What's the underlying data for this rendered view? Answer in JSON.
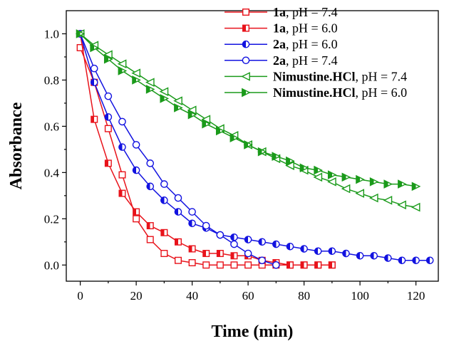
{
  "chart_data": {
    "type": "line",
    "xlabel": "Time (min)",
    "ylabel": "Absorbance",
    "xlim": [
      -5,
      128
    ],
    "ylim": [
      -0.07,
      1.1
    ],
    "xticks": [
      0,
      20,
      40,
      60,
      80,
      100,
      120
    ],
    "yticks": [
      0.0,
      0.2,
      0.4,
      0.6,
      0.8,
      1.0
    ],
    "xtick_labels": [
      "0",
      "20",
      "40",
      "60",
      "80",
      "100",
      "120"
    ],
    "ytick_labels": [
      "0.0",
      "0.2",
      "0.4",
      "0.6",
      "0.8",
      "1.0"
    ],
    "legend_position": "top-right",
    "series": [
      {
        "legend_bold": "1a",
        "legend_rest": ", pH = 7.4",
        "color": "#e8131b",
        "marker": "square",
        "fill": "open",
        "x": [
          0,
          5,
          10,
          15,
          20,
          25,
          30,
          35,
          40,
          45,
          50,
          55,
          60,
          65,
          70,
          75,
          80,
          85,
          90
        ],
        "y": [
          0.94,
          0.79,
          0.59,
          0.39,
          0.2,
          0.11,
          0.05,
          0.02,
          0.01,
          0.0,
          0.0,
          0.0,
          0.0,
          0.0,
          0.0,
          0.0,
          0.0,
          0.0,
          0.0
        ]
      },
      {
        "legend_bold": "1a",
        "legend_rest": ", pH = 6.0",
        "color": "#e8131b",
        "marker": "square",
        "fill": "half",
        "x": [
          0,
          5,
          10,
          15,
          20,
          25,
          30,
          35,
          40,
          45,
          50,
          55,
          60,
          65,
          70,
          75,
          80,
          85,
          90
        ],
        "y": [
          1.0,
          0.63,
          0.44,
          0.31,
          0.23,
          0.17,
          0.14,
          0.1,
          0.07,
          0.05,
          0.05,
          0.04,
          0.04,
          0.02,
          0.01,
          0.0,
          0.0,
          0.0,
          0.0
        ]
      },
      {
        "legend_bold": "2a",
        "legend_rest": ", pH = 6.0",
        "color": "#1212e0",
        "marker": "circle",
        "fill": "half",
        "x": [
          0,
          5,
          10,
          15,
          20,
          25,
          30,
          35,
          40,
          45,
          50,
          55,
          60,
          65,
          70,
          75,
          80,
          85,
          90,
          95,
          100,
          105,
          110,
          115,
          120,
          125
        ],
        "y": [
          1.0,
          0.79,
          0.64,
          0.51,
          0.41,
          0.34,
          0.28,
          0.23,
          0.18,
          0.16,
          0.13,
          0.12,
          0.11,
          0.1,
          0.09,
          0.08,
          0.07,
          0.06,
          0.06,
          0.05,
          0.04,
          0.04,
          0.03,
          0.02,
          0.02,
          0.02
        ]
      },
      {
        "legend_bold": "2a",
        "legend_rest": ", pH = 7.4",
        "color": "#1212e0",
        "marker": "circle",
        "fill": "open",
        "x": [
          0,
          5,
          10,
          15,
          20,
          25,
          30,
          35,
          40,
          45,
          50,
          55,
          60,
          65,
          70
        ],
        "y": [
          1.0,
          0.85,
          0.73,
          0.62,
          0.52,
          0.44,
          0.35,
          0.29,
          0.23,
          0.17,
          0.13,
          0.09,
          0.05,
          0.02,
          0.0
        ]
      },
      {
        "legend_bold": "Nimustine.HCl",
        "legend_rest": ", pH = 7.4",
        "color": "#1a9a1a",
        "marker": "triangle-left",
        "fill": "open",
        "x": [
          0,
          5,
          10,
          15,
          20,
          25,
          30,
          35,
          40,
          45,
          50,
          55,
          60,
          65,
          70,
          75,
          80,
          85,
          90,
          95,
          100,
          105,
          110,
          115,
          120
        ],
        "y": [
          1.0,
          0.95,
          0.91,
          0.87,
          0.83,
          0.79,
          0.75,
          0.71,
          0.67,
          0.63,
          0.59,
          0.56,
          0.52,
          0.49,
          0.46,
          0.43,
          0.41,
          0.38,
          0.36,
          0.33,
          0.31,
          0.29,
          0.28,
          0.26,
          0.25
        ]
      },
      {
        "legend_bold": "Nimustine.HCl",
        "legend_rest": ", pH = 6.0",
        "color": "#1a9a1a",
        "marker": "triangle-right",
        "fill": "half",
        "x": [
          0,
          5,
          10,
          15,
          20,
          25,
          30,
          35,
          40,
          45,
          50,
          55,
          60,
          65,
          70,
          75,
          80,
          85,
          90,
          95,
          100,
          105,
          110,
          115,
          120
        ],
        "y": [
          1.0,
          0.94,
          0.89,
          0.84,
          0.8,
          0.76,
          0.72,
          0.68,
          0.65,
          0.61,
          0.58,
          0.55,
          0.52,
          0.49,
          0.47,
          0.45,
          0.42,
          0.41,
          0.39,
          0.38,
          0.37,
          0.36,
          0.35,
          0.35,
          0.34
        ]
      }
    ]
  }
}
